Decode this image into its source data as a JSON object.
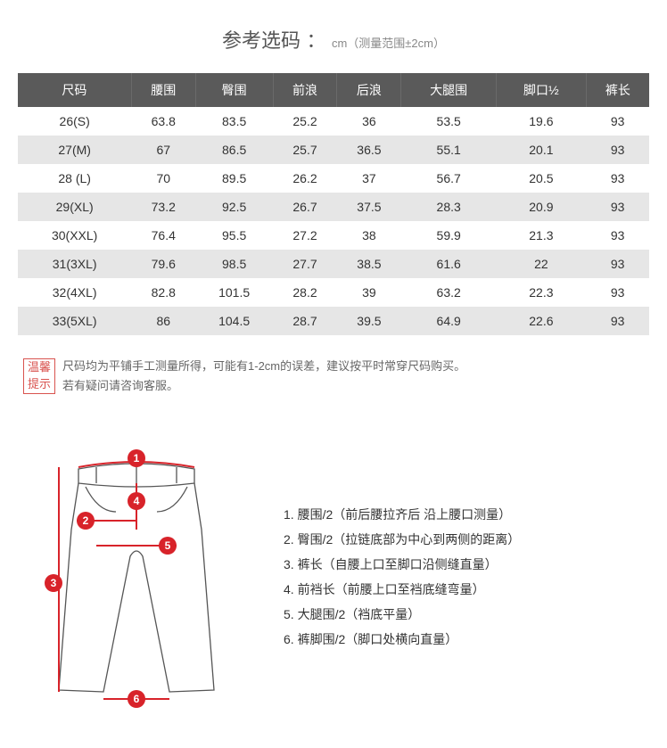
{
  "title": {
    "main": "参考选码",
    "colon": "：",
    "sub": "cm（测量范围±2cm）"
  },
  "table": {
    "columns": [
      "尺码",
      "腰围",
      "臀围",
      "前浪",
      "后浪",
      "大腿围",
      "脚口½",
      "裤长"
    ],
    "rows": [
      [
        "26(S)",
        "63.8",
        "83.5",
        "25.2",
        "36",
        "53.5",
        "19.6",
        "93"
      ],
      [
        "27(M)",
        "67",
        "86.5",
        "25.7",
        "36.5",
        "55.1",
        "20.1",
        "93"
      ],
      [
        "28 (L)",
        "70",
        "89.5",
        "26.2",
        "37",
        "56.7",
        "20.5",
        "93"
      ],
      [
        "29(XL)",
        "73.2",
        "92.5",
        "26.7",
        "37.5",
        "28.3",
        "20.9",
        "93"
      ],
      [
        "30(XXL)",
        "76.4",
        "95.5",
        "27.2",
        "38",
        "59.9",
        "21.3",
        "93"
      ],
      [
        "31(3XL)",
        "79.6",
        "98.5",
        "27.7",
        "38.5",
        "61.6",
        "22",
        "93"
      ],
      [
        "32(4XL)",
        "82.8",
        "101.5",
        "28.2",
        "39",
        "63.2",
        "22.3",
        "93"
      ],
      [
        "33(5XL)",
        "86",
        "104.5",
        "28.7",
        "39.5",
        "64.9",
        "22.6",
        "93"
      ]
    ],
    "header_bg": "#5a5a5a",
    "header_color": "#ffffff",
    "row_odd_bg": "#ffffff",
    "row_even_bg": "#e6e6e6",
    "text_color": "#333333",
    "font_size": 14
  },
  "tip": {
    "badge_line1": "温馨",
    "badge_line2": "提示",
    "badge_color": "#d9534f",
    "line1": "尺码均为平铺手工测量所得，可能有1-2cm的误差，建议按平时常穿尺码购买。",
    "line2": "若有疑问请咨询客服。"
  },
  "diagram": {
    "marker_color": "#d8232a",
    "marker_text_color": "#ffffff",
    "outline_color": "#555555",
    "numbers": [
      "1",
      "2",
      "3",
      "4",
      "5",
      "6"
    ]
  },
  "measurements": [
    "1. 腰围/2（前后腰拉齐后 沿上腰口测量）",
    "2. 臀围/2（拉链底部为中心到两侧的距离）",
    "3. 裤长（自腰上口至脚口沿侧缝直量）",
    "4. 前裆长（前腰上口至裆底缝弯量）",
    "5. 大腿围/2（裆底平量）",
    "6. 裤脚围/2（脚口处横向直量）"
  ]
}
